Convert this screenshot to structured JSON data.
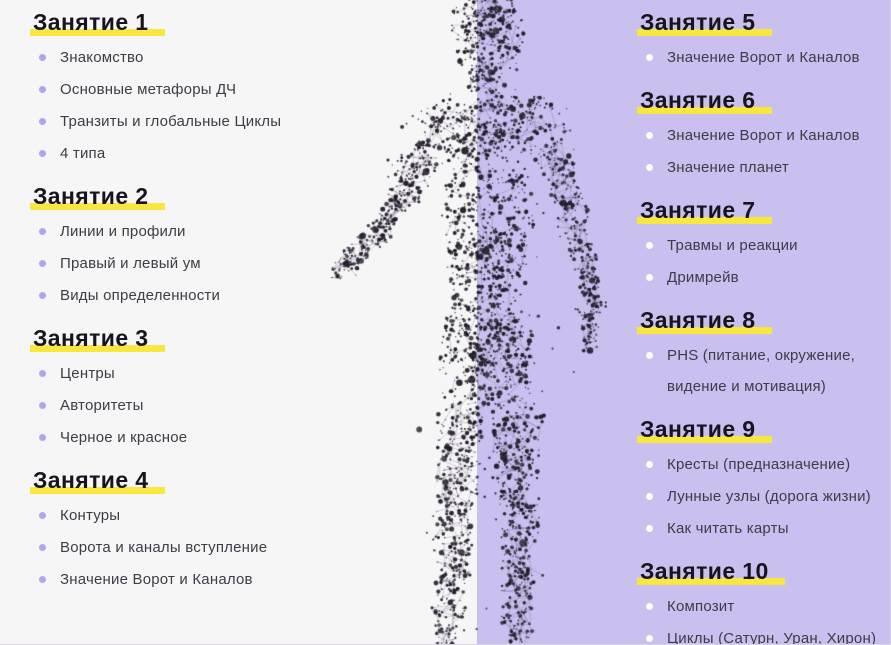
{
  "palette": {
    "left_bg": "#f7f6f7",
    "right_bg": "#c9c0ef",
    "highlight_yellow": "#f8e73e",
    "heading_color": "#17141d",
    "text_color": "#3e3c45",
    "left_bullet_color": "#b3a5ec",
    "right_bullet_color": "#ffffff"
  },
  "figure": {
    "name": "particle-human-silhouette",
    "dot_color": "#221e29",
    "line_color": "rgba(95,85,120,0.38)"
  },
  "left_column": {
    "sections": [
      {
        "title": "Занятие 1",
        "items": [
          "Знакомство",
          "Основные метафоры ДЧ",
          "Транзиты и глобальные Циклы",
          "4 типа"
        ]
      },
      {
        "title": "Занятие 2",
        "items": [
          "Линии и профили",
          "Правый и левый ум",
          "Виды определенности"
        ]
      },
      {
        "title": "Занятие 3",
        "items": [
          "Центры",
          "Авторитеты",
          "Черное и красное"
        ]
      },
      {
        "title": "Занятие 4",
        "items": [
          "Контуры",
          "Ворота и каналы вступление",
          "Значение Ворот и Каналов"
        ]
      }
    ]
  },
  "right_column": {
    "sections": [
      {
        "title": "Занятие 5",
        "items": [
          "Значение Ворот и Каналов"
        ]
      },
      {
        "title": "Занятие 6",
        "items": [
          "Значение Ворот и Каналов",
          "Значение планет"
        ]
      },
      {
        "title": "Занятие 7",
        "items": [
          "Травмы и реакции",
          "Дримрейв"
        ]
      },
      {
        "title": "Занятие 8",
        "items": [
          "PHS (питание, окружение,\nвидение и мотивация)"
        ]
      },
      {
        "title": "Занятие 9",
        "items": [
          "Кресты (предназначение)",
          "Лунные узлы (дорога жизни)",
          "Как читать карты"
        ]
      },
      {
        "title": "Занятие 10",
        "items": [
          "Композит",
          "Циклы (Сатурн, Уран, Хирон)"
        ]
      }
    ]
  }
}
